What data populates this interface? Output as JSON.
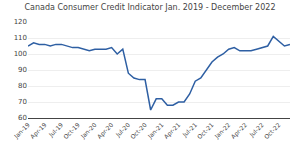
{
  "chart_data": {
    "type": "line",
    "title": "Canada Consumer Credit Indicator Jan. 2019 - December 2022",
    "categories": [
      "Jan-19",
      null,
      null,
      "Apr-19",
      null,
      null,
      "Jul-19",
      null,
      null,
      "Oct-19",
      null,
      null,
      "Jan-20",
      null,
      null,
      "Apr-20",
      null,
      null,
      "Jul-20",
      null,
      null,
      "Oct-20",
      null,
      null,
      "Jan-21",
      null,
      null,
      "Apr-21",
      null,
      null,
      "Jul-21",
      null,
      null,
      "Oct-21",
      null,
      null,
      "Jan-22",
      null,
      null,
      "Apr-22",
      null,
      null,
      "Jul-22",
      null,
      null,
      "Oct-22",
      null,
      null
    ],
    "values": [
      105,
      107,
      106,
      106,
      105,
      106,
      106,
      105,
      104,
      104,
      103,
      102,
      103,
      103,
      103,
      104,
      100,
      103,
      88,
      85,
      84,
      84,
      65,
      72,
      72,
      68,
      68,
      70,
      70,
      75,
      83,
      85,
      90,
      95,
      98,
      100,
      103,
      104,
      102,
      102,
      102,
      103,
      104,
      105,
      111,
      108,
      105,
      106
    ],
    "color": "#2E5FA3",
    "ylim": [
      60,
      120
    ],
    "yticks": [
      60,
      70,
      80,
      90,
      100,
      110,
      120
    ],
    "grid": true
  }
}
